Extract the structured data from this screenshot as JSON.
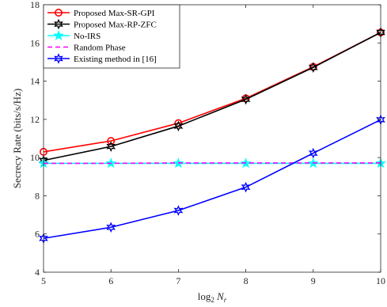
{
  "chart_data": {
    "type": "line",
    "xlabel": "log",
    "xlabel_sub": "2",
    "xlabel_var": "N",
    "xlabel_var_sub": "r",
    "ylabel": "Secrecy Rate (bits/s/Hz)",
    "xlim": [
      5,
      10
    ],
    "ylim": [
      4,
      18
    ],
    "x_ticks": [
      5,
      6,
      7,
      8,
      9,
      10
    ],
    "y_ticks": [
      4,
      6,
      8,
      10,
      12,
      14,
      16,
      18
    ],
    "grid": false,
    "legend_position": "top-left",
    "x": [
      5,
      6,
      7,
      8,
      9,
      10
    ],
    "series": [
      {
        "name": "Proposed Max-SR-GPI",
        "color": "#ff0000",
        "marker": "circle",
        "dash": "solid",
        "values": [
          10.3,
          10.87,
          11.8,
          13.1,
          14.75,
          16.55
        ]
      },
      {
        "name": "Proposed Max-RP-ZFC",
        "color": "#000000",
        "marker": "hexagram",
        "dash": "solid",
        "values": [
          9.85,
          10.58,
          11.65,
          13.05,
          14.72,
          16.55
        ]
      },
      {
        "name": "No-IRS",
        "color": "#00ffff",
        "marker": "pentagram",
        "dash": "solid",
        "values": [
          9.7,
          9.7,
          9.7,
          9.7,
          9.7,
          9.7
        ]
      },
      {
        "name": "Random Phase",
        "color": "#ff00ff",
        "marker": "none",
        "dash": "dashed",
        "values": [
          9.7,
          9.7,
          9.72,
          9.72,
          9.72,
          9.72
        ]
      },
      {
        "name": "Existing method in [16]",
        "color": "#0000ff",
        "marker": "hexagram",
        "dash": "solid",
        "values": [
          5.77,
          6.35,
          7.23,
          8.45,
          10.23,
          11.98
        ]
      }
    ]
  }
}
